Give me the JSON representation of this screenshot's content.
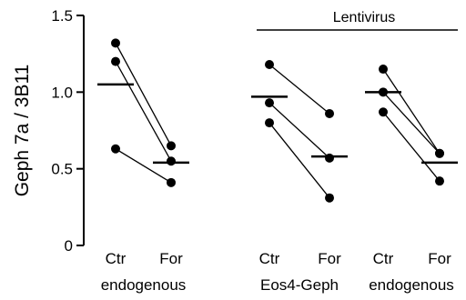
{
  "chart_data": {
    "type": "scatter",
    "subtype": "paired-dot-plot-with-means",
    "ylabel": "Geph 7a / 3B11",
    "ylim": [
      0,
      1.5
    ],
    "yticks": [
      0,
      0.5,
      1.0,
      1.5
    ],
    "ytick_labels": [
      "0",
      "0.5",
      "1.0",
      "1.5"
    ],
    "grid": false,
    "legend": "none",
    "colors": {
      "points": "#000000",
      "lines": "#000000",
      "axes": "#000000"
    },
    "bracket": {
      "label": "Lentivirus",
      "spans_groups": [
        1,
        2
      ]
    },
    "groups": [
      {
        "label": "endogenous",
        "conditions": [
          "Ctr",
          "For"
        ],
        "pairs": [
          [
            1.32,
            0.65
          ],
          [
            1.2,
            0.55
          ],
          [
            0.63,
            0.41
          ]
        ],
        "means": [
          1.05,
          0.54
        ]
      },
      {
        "label": "Eos4-Geph",
        "conditions": [
          "Ctr",
          "For"
        ],
        "pairs": [
          [
            1.18,
            0.86
          ],
          [
            0.93,
            0.57
          ],
          [
            0.8,
            0.31
          ]
        ],
        "means": [
          0.97,
          0.58
        ]
      },
      {
        "label": "endogenous",
        "conditions": [
          "Ctr",
          "For"
        ],
        "pairs": [
          [
            1.15,
            0.6
          ],
          [
            1.0,
            0.6
          ],
          [
            0.87,
            0.42
          ]
        ],
        "means": [
          1.0,
          0.54
        ]
      }
    ]
  }
}
